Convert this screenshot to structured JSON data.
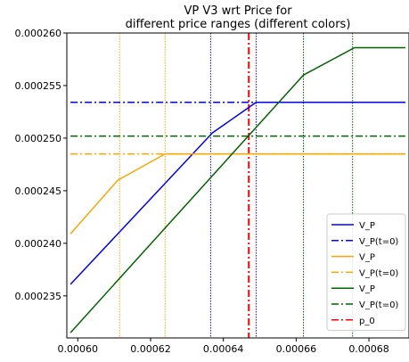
{
  "chart_data": {
    "type": "line",
    "title": "VP V3 wrt Price for",
    "subtitle": "different price ranges (different colors)",
    "xlabel": "",
    "ylabel": "",
    "xlim": [
      0.000597,
      0.000691
    ],
    "ylim": [
      0.000231,
      0.00026
    ],
    "x_ticks": [
      "0.00060",
      "0.00062",
      "0.00064",
      "0.00066",
      "0.00068"
    ],
    "x_tick_values": [
      0.0006,
      0.00062,
      0.00064,
      0.00066,
      0.00068
    ],
    "y_ticks": [
      "0.000235",
      "0.000240",
      "0.000245",
      "0.000250",
      "0.000255",
      "0.000260"
    ],
    "y_tick_values": [
      0.000235,
      0.00024,
      0.000245,
      0.00025,
      0.000255,
      0.00026
    ],
    "grid": false,
    "legend_position": "lower-right",
    "series": [
      {
        "name": "V_P",
        "color": "#0000ff",
        "style": "solid",
        "x": [
          0.000598,
          0.000637,
          0.000649,
          0.00069
        ],
        "y": [
          0.0002361,
          0.0002505,
          0.0002534,
          0.0002534
        ]
      },
      {
        "name": "V_P(t=0)",
        "color": "#0000ff",
        "style": "dashdot",
        "x": [
          0.000598,
          0.00069
        ],
        "y": [
          0.0002534,
          0.0002534
        ]
      },
      {
        "name": "V_P",
        "color": "#ffa500",
        "style": "solid",
        "x": [
          0.000598,
          0.000611,
          0.000624,
          0.00069
        ],
        "y": [
          0.0002409,
          0.000246,
          0.0002485,
          0.0002485
        ]
      },
      {
        "name": "V_P(t=0)",
        "color": "#ffa500",
        "style": "dashdot",
        "x": [
          0.000598,
          0.00069
        ],
        "y": [
          0.0002485,
          0.0002485
        ]
      },
      {
        "name": "V_P",
        "color": "#006400",
        "style": "solid",
        "x": [
          0.000598,
          0.000662,
          0.000676,
          0.00069
        ],
        "y": [
          0.0002315,
          0.000256,
          0.0002586,
          0.0002586
        ]
      },
      {
        "name": "V_P(t=0)",
        "color": "#006400",
        "style": "dashdot",
        "x": [
          0.000598,
          0.00069
        ],
        "y": [
          0.0002502,
          0.0002502
        ]
      }
    ],
    "vlines": [
      {
        "x": 0.0006115,
        "color": "#ffa500",
        "style": "dotted"
      },
      {
        "x": 0.000624,
        "color": "#ffa500",
        "style": "dotted"
      },
      {
        "x": 0.0006365,
        "color": "#0000ff",
        "style": "dotted"
      },
      {
        "x": 0.000649,
        "color": "#0000ff",
        "style": "dotted"
      },
      {
        "x": 0.000662,
        "color": "#006400",
        "style": "dotted"
      },
      {
        "x": 0.0006755,
        "color": "#006400",
        "style": "dotted"
      },
      {
        "x": 0.000647,
        "color": "#ff0000",
        "style": "dashdot",
        "name": "p_0"
      }
    ],
    "legend": [
      {
        "label": "V_P",
        "color": "#0000ff",
        "style": "solid"
      },
      {
        "label": "V_P(t=0)",
        "color": "#0000ff",
        "style": "dashdot"
      },
      {
        "label": "V_P",
        "color": "#ffa500",
        "style": "solid"
      },
      {
        "label": "V_P(t=0)",
        "color": "#ffa500",
        "style": "dashdot"
      },
      {
        "label": "V_P",
        "color": "#006400",
        "style": "solid"
      },
      {
        "label": "V_P(t=0)",
        "color": "#006400",
        "style": "dashdot"
      },
      {
        "label": "p_0",
        "color": "#ff0000",
        "style": "dashdot"
      }
    ]
  }
}
